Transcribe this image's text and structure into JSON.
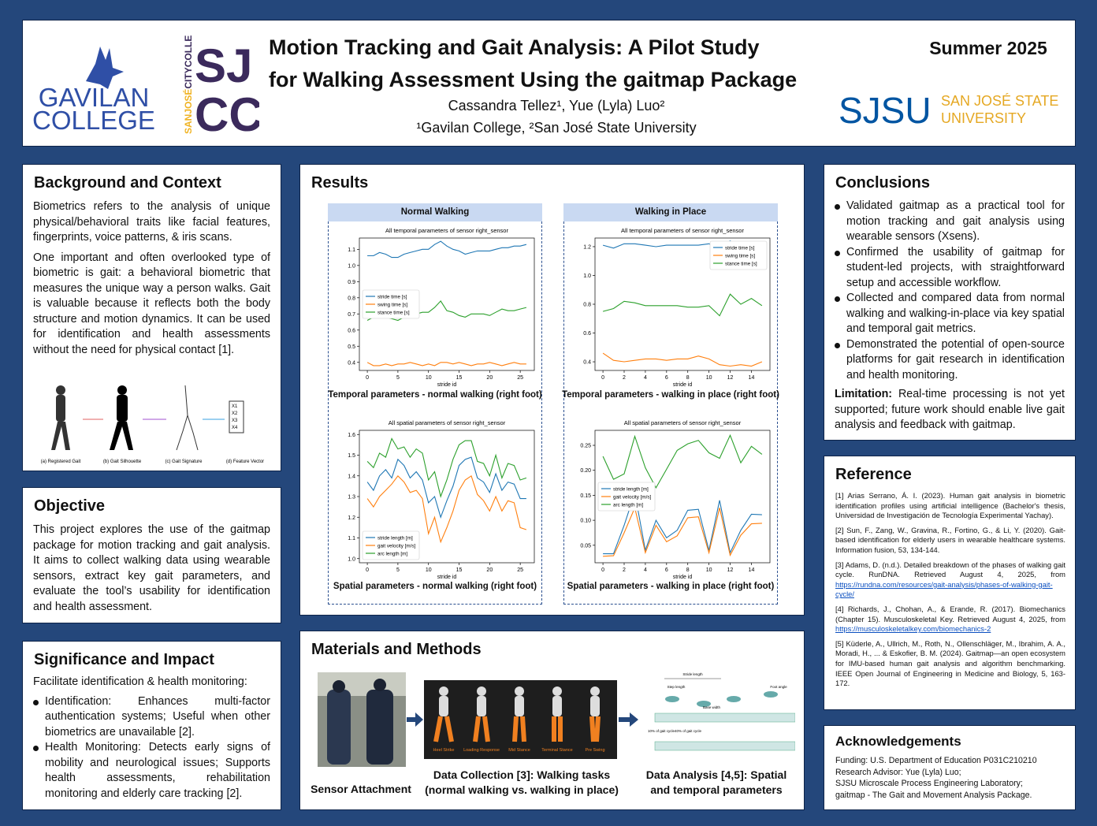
{
  "header": {
    "title_lines": [
      "Motion Tracking and Gait Analysis: A Pilot Study",
      "for Walking Assessment Using the gaitmap Package"
    ],
    "authors": "Cassandra Tellez¹, Yue (Lyla) Luo²",
    "affiliations": "¹Gavilan College, ²San José State University",
    "season": "Summer 2025",
    "logos": {
      "gavilan": [
        "GAVILAN",
        "COLLEGE"
      ],
      "sjcc": {
        "side": [
          "SANJOSÉ",
          "CITYCOLLEGE"
        ],
        "top": "SJ",
        "bottom": "CC"
      },
      "sjsu": {
        "mark": "SJSU",
        "name": [
          "SAN JOSÉ STATE",
          "UNIVERSITY"
        ]
      }
    }
  },
  "background": {
    "heading": "Background and Context",
    "paragraphs": [
      "Biometrics refers to the analysis of unique physical/behavioral traits like facial features, fingerprints, voice patterns, & iris scans.",
      "One important and often overlooked type of biometric is gait: a behavioral biometric that measures the unique way a person walks. Gait is valuable because it reflects both the body structure and motion dynamics. It can be used for identification and health assessments without the need for physical contact [1]."
    ],
    "figure": {
      "labels": [
        "(a) Registered Gait",
        "(b) Gait Silhouette",
        "(c) Gait Signature",
        "(d) Feature Vector"
      ],
      "vector": [
        "X1",
        "X2",
        "X3",
        "X4"
      ]
    }
  },
  "objective": {
    "heading": "Objective",
    "text": "This project explores the use of the gaitmap package for motion tracking and gait analysis. It aims to collect walking data using wearable sensors, extract key gait parameters, and evaluate the tool’s usability for identification and health assessment."
  },
  "significance": {
    "heading": "Significance and Impact",
    "intro": "Facilitate identification & health monitoring:",
    "bullets": [
      "Identification: Enhances multi-factor authentication systems; Useful when other biometrics are unavailable [2].",
      "Health Monitoring: Detects early signs of mobility and neurological issues; Supports health assessments, rehabilitation monitoring and elderly care tracking [2]."
    ]
  },
  "results": {
    "heading": "Results",
    "columns": [
      {
        "header": "Normal Walking",
        "captions": [
          "Temporal parameters - normal walking (right foot)",
          "Spatial parameters - normal walking (right foot)"
        ]
      },
      {
        "header": "Walking in Place",
        "captions": [
          "Temporal parameters - walking in place  (right foot)",
          "Spatial parameters - walking in place (right foot)"
        ]
      }
    ]
  },
  "methods": {
    "heading": "Materials and Methods",
    "phases": [
      "Heel Strike",
      "Loading Response",
      "Mid Stance",
      "Terminal Stance",
      "Pre Swing"
    ],
    "diagram_labels": [
      "Stride length",
      "Step length",
      "Base width",
      "Foot angle",
      "10% of gait cycle",
      "40% of gait cycle"
    ],
    "captions": [
      "Sensor Attachment",
      "Data Collection [3]: Walking tasks (normal walking vs. walking in place)",
      "Data Analysis [4,5]: Spatial and temporal parameters"
    ]
  },
  "conclusions": {
    "heading": "Conclusions",
    "bullets": [
      "Validated gaitmap as a practical tool for motion tracking and gait analysis using wearable sensors (Xsens).",
      "Confirmed the usability of gaitmap for student-led projects, with straightforward setup and accessible workflow.",
      "Collected and compared data from normal walking and walking-in-place via key spatial and temporal gait metrics.",
      "Demonstrated the potential of open-source platforms for gait research in identification and health monitoring."
    ],
    "limitation": {
      "label": "Limitation:",
      "text": "Real-time processing is not yet supported; future work should enable live gait analysis and feedback with gaitmap."
    }
  },
  "references": {
    "heading": "Reference",
    "items": [
      {
        "text": "[1] Arias Serrano, Á. I. (2023). Human gait analysis in biometric identification profiles using artificial intelligence (Bachelor's thesis, Universidad de Investigación de Tecnología Experimental Yachay)."
      },
      {
        "text": "[2] Sun, F., Zang, W., Gravina, R., Fortino, G., & Li, Y. (2020). Gait-based identification for elderly users in wearable healthcare systems. Information fusion, 53, 134-144."
      },
      {
        "text": "[3] Adams, D. (n.d.). Detailed breakdown of the phases of walking gait cycle. RunDNA. Retrieved August 4, 2025, from",
        "link": "https://rundna.com/resources/gait-analysis/phases-of-walking-gait-cycle/"
      },
      {
        "text": "[4] Richards, J., Chohan, A., & Erande, R. (2017). Biomechanics (Chapter 15). Musculoskeletal Key. Retrieved August 4, 2025, from",
        "link": "https://musculoskeletalkey.com/biomechanics-2"
      },
      {
        "text": "[5] Küderle, A., Ullrich, M., Roth, N., Ollenschläger, M., Ibrahim, A. A., Moradi, H., ... & Eskofier, B. M. (2024). Gaitmap—an open ecosystem for IMU-based human gait analysis and algorithm benchmarking. IEEE Open Journal of Engineering in Medicine and Biology, 5, 163-172."
      }
    ]
  },
  "acknowledgements": {
    "heading": "Acknowledgements",
    "lines": [
      "Funding:  U.S. Department of Education P031C210210",
      "Research Advisor:  Yue (Lyla) Luo;",
      "SJSU Microscale Process Engineering Laboratory;",
      "gaitmap - The Gait and Movement Analysis Package."
    ]
  },
  "chart_data": [
    {
      "type": "line",
      "title": "All temporal parameters of sensor right_sensor",
      "xlabel": "stride id",
      "legend": "center left",
      "x": [
        0,
        1,
        2,
        3,
        4,
        5,
        6,
        7,
        8,
        9,
        10,
        11,
        12,
        13,
        14,
        15,
        16,
        17,
        18,
        19,
        20,
        21,
        22,
        23,
        24,
        25,
        26
      ],
      "xlim": [
        -1.3,
        27.3
      ],
      "xticks": [
        0,
        5,
        10,
        15,
        20,
        25
      ],
      "ylim": [
        0.35,
        1.17
      ],
      "yticks": [
        0.4,
        0.5,
        0.6,
        0.7,
        0.8,
        0.9,
        {
          "value": 1,
          "label": "1.0"
        },
        1.1
      ],
      "series": [
        {
          "name": "stride time [s]",
          "color": "#1f77b4",
          "values": [
            1.06,
            1.06,
            1.08,
            1.07,
            1.05,
            1.05,
            1.07,
            1.08,
            1.09,
            1.1,
            1.1,
            1.13,
            1.15,
            1.12,
            1.1,
            1.09,
            1.07,
            1.08,
            1.09,
            1.09,
            1.09,
            1.1,
            1.11,
            1.11,
            1.12,
            1.12,
            1.13
          ]
        },
        {
          "name": "swing time [s]",
          "color": "#ff7f0e",
          "values": [
            0.4,
            0.38,
            0.38,
            0.39,
            0.38,
            0.39,
            0.39,
            0.4,
            0.39,
            0.38,
            0.39,
            0.38,
            0.4,
            0.4,
            0.39,
            0.4,
            0.39,
            0.38,
            0.39,
            0.39,
            0.4,
            0.39,
            0.38,
            0.39,
            0.4,
            0.39,
            0.39
          ]
        },
        {
          "name": "stance time [s]",
          "color": "#2ca02c",
          "values": [
            0.66,
            0.68,
            0.7,
            0.68,
            0.67,
            0.66,
            0.68,
            0.68,
            0.7,
            0.71,
            0.71,
            0.74,
            0.78,
            0.72,
            0.71,
            0.69,
            0.68,
            0.7,
            0.7,
            0.7,
            0.69,
            0.71,
            0.73,
            0.72,
            0.72,
            0.73,
            0.74
          ]
        }
      ]
    },
    {
      "type": "line",
      "title": "All temporal parameters of sensor right_sensor",
      "xlabel": "stride id",
      "legend": "upper right",
      "x": [
        0,
        1,
        2,
        3,
        4,
        5,
        6,
        7,
        8,
        9,
        10,
        11,
        12,
        13,
        14,
        15
      ],
      "xlim": [
        -0.75,
        15.75
      ],
      "xticks": [
        0,
        2,
        4,
        6,
        8,
        10,
        12,
        14
      ],
      "ylim": [
        0.34,
        1.26
      ],
      "yticks": [
        0.4,
        0.6,
        0.8,
        {
          "value": 1,
          "label": "1.0"
        },
        1.2
      ],
      "series": [
        {
          "name": "stride time [s]",
          "color": "#1f77b4",
          "values": [
            1.21,
            1.19,
            1.22,
            1.22,
            1.21,
            1.2,
            1.21,
            1.21,
            1.21,
            1.21,
            1.22,
            1.19,
            1.24,
            1.19,
            1.21,
            1.19
          ]
        },
        {
          "name": "swing time [s]",
          "color": "#ff7f0e",
          "values": [
            0.46,
            0.41,
            0.4,
            0.41,
            0.42,
            0.42,
            0.41,
            0.42,
            0.42,
            0.44,
            0.42,
            0.38,
            0.37,
            0.38,
            0.37,
            0.4
          ]
        },
        {
          "name": "stance time [s]",
          "color": "#2ca02c",
          "values": [
            0.75,
            0.77,
            0.82,
            0.81,
            0.79,
            0.79,
            0.79,
            0.79,
            0.78,
            0.78,
            0.79,
            0.72,
            0.87,
            0.8,
            0.84,
            0.79
          ]
        }
      ]
    },
    {
      "type": "line",
      "title": "All spatial parameters of sensor right_sensor",
      "xlabel": "stride id",
      "legend": "lower left",
      "x": [
        0,
        1,
        2,
        3,
        4,
        5,
        6,
        7,
        8,
        9,
        10,
        11,
        12,
        13,
        14,
        15,
        16,
        17,
        18,
        19,
        20,
        21,
        22,
        23,
        24,
        25,
        26
      ],
      "xlim": [
        -1.3,
        27.3
      ],
      "xticks": [
        0,
        5,
        10,
        15,
        20,
        25
      ],
      "ylim": [
        0.98,
        1.62
      ],
      "yticks": [
        {
          "value": 1,
          "label": "1.0"
        },
        1.1,
        1.2,
        1.3,
        1.4,
        1.5,
        1.6
      ],
      "series": [
        {
          "name": "stride length [m]",
          "color": "#1f77b4",
          "values": [
            1.37,
            1.33,
            1.4,
            1.43,
            1.39,
            1.48,
            1.45,
            1.39,
            1.42,
            1.38,
            1.27,
            1.3,
            1.2,
            1.28,
            1.35,
            1.45,
            1.48,
            1.49,
            1.39,
            1.37,
            1.32,
            1.41,
            1.33,
            1.37,
            1.36,
            1.29,
            1.29
          ]
        },
        {
          "name": "gait velocity [m/s]",
          "color": "#ff7f0e",
          "values": [
            1.29,
            1.25,
            1.3,
            1.33,
            1.36,
            1.4,
            1.37,
            1.32,
            1.33,
            1.29,
            1.12,
            1.2,
            1.08,
            1.15,
            1.23,
            1.33,
            1.38,
            1.4,
            1.31,
            1.28,
            1.23,
            1.3,
            1.23,
            1.28,
            1.27,
            1.15,
            1.14
          ]
        },
        {
          "name": "arc length [m]",
          "color": "#2ca02c",
          "values": [
            1.47,
            1.44,
            1.51,
            1.49,
            1.58,
            1.53,
            1.54,
            1.49,
            1.53,
            1.51,
            1.38,
            1.42,
            1.3,
            1.38,
            1.48,
            1.55,
            1.57,
            1.57,
            1.47,
            1.46,
            1.4,
            1.5,
            1.39,
            1.46,
            1.45,
            1.38,
            1.39
          ]
        }
      ]
    },
    {
      "type": "line",
      "title": "All spatial parameters of sensor right_sensor",
      "xlabel": "stride id",
      "legend": "center left",
      "x": [
        0,
        1,
        2,
        3,
        4,
        5,
        6,
        7,
        8,
        9,
        10,
        11,
        12,
        13,
        14,
        15
      ],
      "xlim": [
        -0.75,
        15.75
      ],
      "xticks": [
        0,
        2,
        4,
        6,
        8,
        10,
        12,
        14
      ],
      "ylim": [
        0.015,
        0.28
      ],
      "yticks": [
        0.05,
        {
          "value": 0.1,
          "label": "0.10"
        },
        0.15,
        {
          "value": 0.2,
          "label": "0.20"
        },
        0.25
      ],
      "series": [
        {
          "name": "stride length [m]",
          "color": "#1f77b4",
          "values": [
            0.033,
            0.033,
            0.09,
            0.155,
            0.04,
            0.1,
            0.065,
            0.08,
            0.12,
            0.122,
            0.04,
            0.14,
            0.035,
            0.08,
            0.112,
            0.111
          ]
        },
        {
          "name": "gait velocity [m/s]",
          "color": "#ff7f0e",
          "values": [
            0.028,
            0.029,
            0.075,
            0.125,
            0.035,
            0.09,
            0.057,
            0.069,
            0.105,
            0.107,
            0.035,
            0.125,
            0.03,
            0.07,
            0.093,
            0.094
          ]
        },
        {
          "name": "arc length [m]",
          "color": "#2ca02c",
          "values": [
            0.228,
            0.182,
            0.193,
            0.268,
            0.205,
            0.165,
            0.202,
            0.24,
            0.253,
            0.26,
            0.235,
            0.224,
            0.27,
            0.215,
            0.248,
            0.232
          ]
        }
      ]
    }
  ]
}
